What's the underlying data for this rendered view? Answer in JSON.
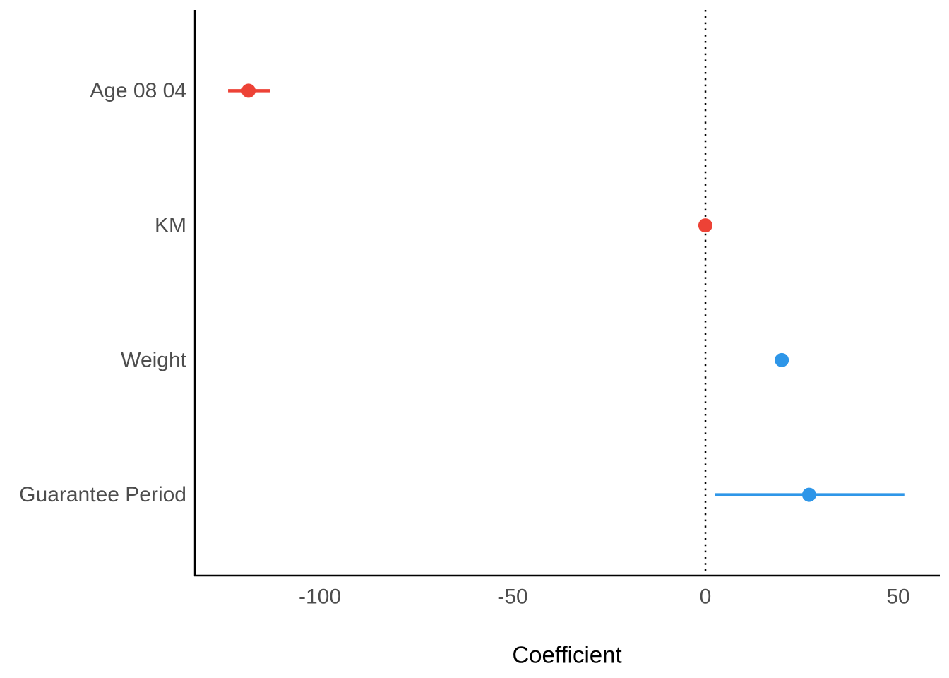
{
  "chart_data": {
    "type": "scatter",
    "subtype": "coefficient-forest-plot",
    "title": "",
    "xlabel": "Coefficient",
    "ylabel": "",
    "x_ticks": [
      -100,
      -50,
      0,
      50
    ],
    "x_tick_labels": [
      "-100",
      "-50",
      "0",
      "50"
    ],
    "xlim": [
      -132.6,
      60.8
    ],
    "grid": false,
    "legend": false,
    "reference_line": {
      "x": 0,
      "style": "dotted",
      "color": "#000000"
    },
    "categories": [
      "Age 08 04",
      "KM",
      "Weight",
      "Guarantee Period"
    ],
    "series": [
      {
        "name": "Age 08 04",
        "estimate": -118.5,
        "ci_low": -123.8,
        "ci_high": -113.0,
        "color": "#ED4236",
        "sign": "negative"
      },
      {
        "name": "KM",
        "estimate": -0.02,
        "ci_low": -0.03,
        "ci_high": -0.01,
        "color": "#ED4236",
        "sign": "negative"
      },
      {
        "name": "Weight",
        "estimate": 19.8,
        "ci_low": 18.5,
        "ci_high": 21.1,
        "color": "#2E96E8",
        "sign": "positive"
      },
      {
        "name": "Guarantee Period",
        "estimate": 26.9,
        "ci_low": 2.4,
        "ci_high": 51.6,
        "color": "#2E96E8",
        "sign": "positive"
      }
    ]
  },
  "style": {
    "negative_color": "#ED4236",
    "positive_color": "#2E96E8",
    "axis_color": "#000000",
    "axis_text_color": "#4D4D4D",
    "title_color": "#000000",
    "background": "#FFFFFF"
  }
}
